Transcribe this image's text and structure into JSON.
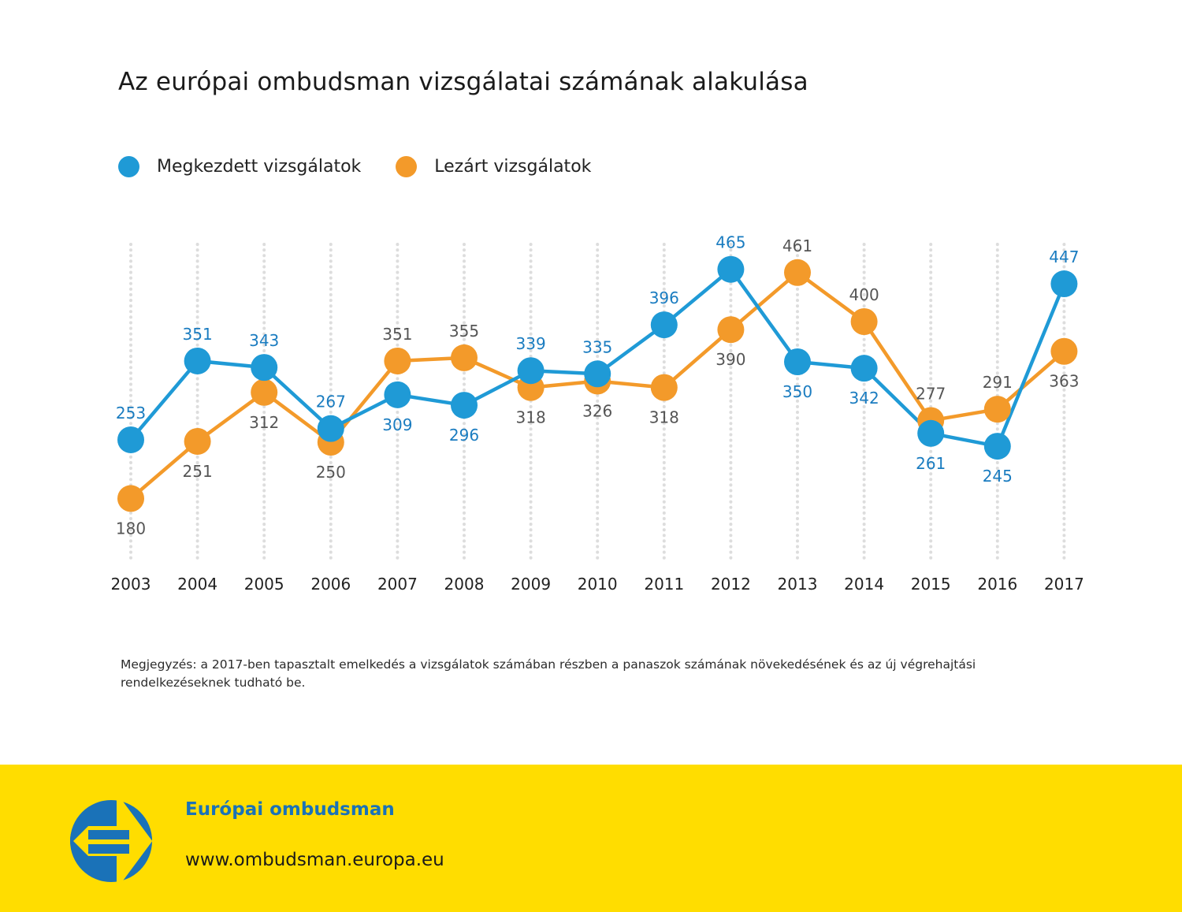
{
  "title": "Az európai ombudsman vizsgálatai számának alakulása",
  "colors": {
    "blue": "#1f9ad6",
    "blue_label": "#1a7cc0",
    "orange": "#f39a2a",
    "grey_label": "#555555",
    "grid": "#dddddd",
    "footer_bg": "#ffdd00",
    "footer_brand": "#1a72b8"
  },
  "legend": [
    {
      "label": "Megkezdett vizsgálatok",
      "color": "#1f9ad6"
    },
    {
      "label": "Lezárt vizsgálatok",
      "color": "#f39a2a"
    }
  ],
  "chart_data": {
    "type": "line",
    "title": "Az európai ombudsman vizsgálatai számának alakulása",
    "xlabel": "",
    "ylabel": "",
    "x": [
      "2003",
      "2004",
      "2005",
      "2006",
      "2007",
      "2008",
      "2009",
      "2010",
      "2011",
      "2012",
      "2013",
      "2014",
      "2015",
      "2016",
      "2017"
    ],
    "series": [
      {
        "name": "Megkezdett vizsgálatok",
        "color": "#1f9ad6",
        "values": [
          253,
          351,
          343,
          267,
          309,
          296,
          339,
          335,
          396,
          465,
          350,
          342,
          261,
          245,
          447
        ],
        "label_pos": [
          "above",
          "above",
          "above",
          "above",
          "below",
          "below",
          "above",
          "above",
          "above",
          "above",
          "below",
          "below",
          "below",
          "below",
          "above"
        ]
      },
      {
        "name": "Lezárt vizsgálatok",
        "color": "#f39a2a",
        "values": [
          180,
          251,
          312,
          250,
          351,
          355,
          318,
          326,
          318,
          390,
          461,
          400,
          277,
          291,
          363
        ],
        "label_pos": [
          "below",
          "below",
          "below",
          "below",
          "above",
          "above",
          "below",
          "below",
          "below",
          "below",
          "above",
          "above",
          "above",
          "above",
          "below"
        ]
      }
    ],
    "grid": "vertical-dotted",
    "legend_position": "top-left",
    "y_axis_visible": false
  },
  "note": "Megjegyzés: a 2017-ben tapasztalt emelkedés a vizsgálatok számában részben a panaszok számának növekedésének és az új végrehajtási rendelkezéseknek tudható be.",
  "footer": {
    "org": "Európai ombudsman",
    "url": "www.ombudsman.europa.eu",
    "logo_icon": "european-ombudsman-logo"
  }
}
